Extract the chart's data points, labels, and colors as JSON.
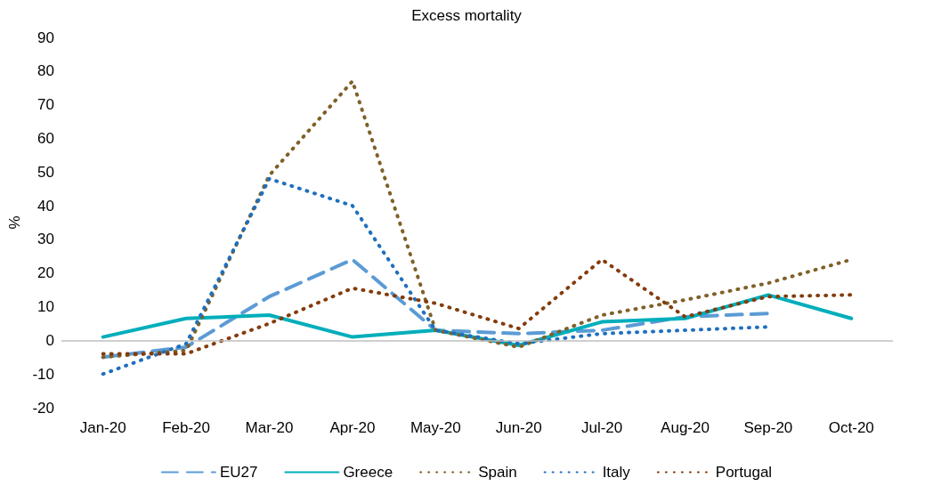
{
  "chart_data": {
    "type": "line",
    "title": "Excess mortality",
    "ylabel": "%",
    "categories": [
      "Jan-20",
      "Feb-20",
      "Mar-20",
      "Apr-20",
      "May-20",
      "Jun-20",
      "Jul-20",
      "Aug-20",
      "Sep-20",
      "Oct-20"
    ],
    "ylim": [
      -20,
      90
    ],
    "yticks": [
      -20,
      -10,
      0,
      10,
      20,
      30,
      40,
      50,
      60,
      70,
      80,
      90
    ],
    "grid": false,
    "ref_lines": [
      {
        "axis": "y",
        "value": 0,
        "color": "#bfbfbf"
      }
    ],
    "legend": "bottom",
    "marker": "none",
    "series": [
      {
        "name": "EU27",
        "color": "#5b9bd5",
        "line_style": "dashed",
        "values": [
          -5,
          -2,
          13,
          24,
          3,
          2,
          3,
          7,
          8,
          null
        ]
      },
      {
        "name": "Greece",
        "color": "#00aebb",
        "line_style": "solid",
        "values": [
          1,
          6.5,
          7.5,
          1,
          3,
          -1.5,
          5.5,
          6.5,
          13.5,
          6.5
        ]
      },
      {
        "name": "Spain",
        "color": "#7f6128",
        "line_style": "dotted",
        "values": [
          -5,
          -3,
          49,
          77,
          3,
          -2,
          7.5,
          12,
          17,
          24
        ]
      },
      {
        "name": "Italy",
        "color": "#1f6fbf",
        "line_style": "dotted",
        "values": [
          -10,
          -1,
          48,
          40,
          3,
          -1,
          2,
          3,
          4,
          null
        ]
      },
      {
        "name": "Portugal",
        "color": "#843c0c",
        "line_style": "dotted",
        "values": [
          -4,
          -4,
          5,
          15.5,
          11,
          3.5,
          24,
          7,
          13,
          13.5
        ]
      }
    ]
  }
}
